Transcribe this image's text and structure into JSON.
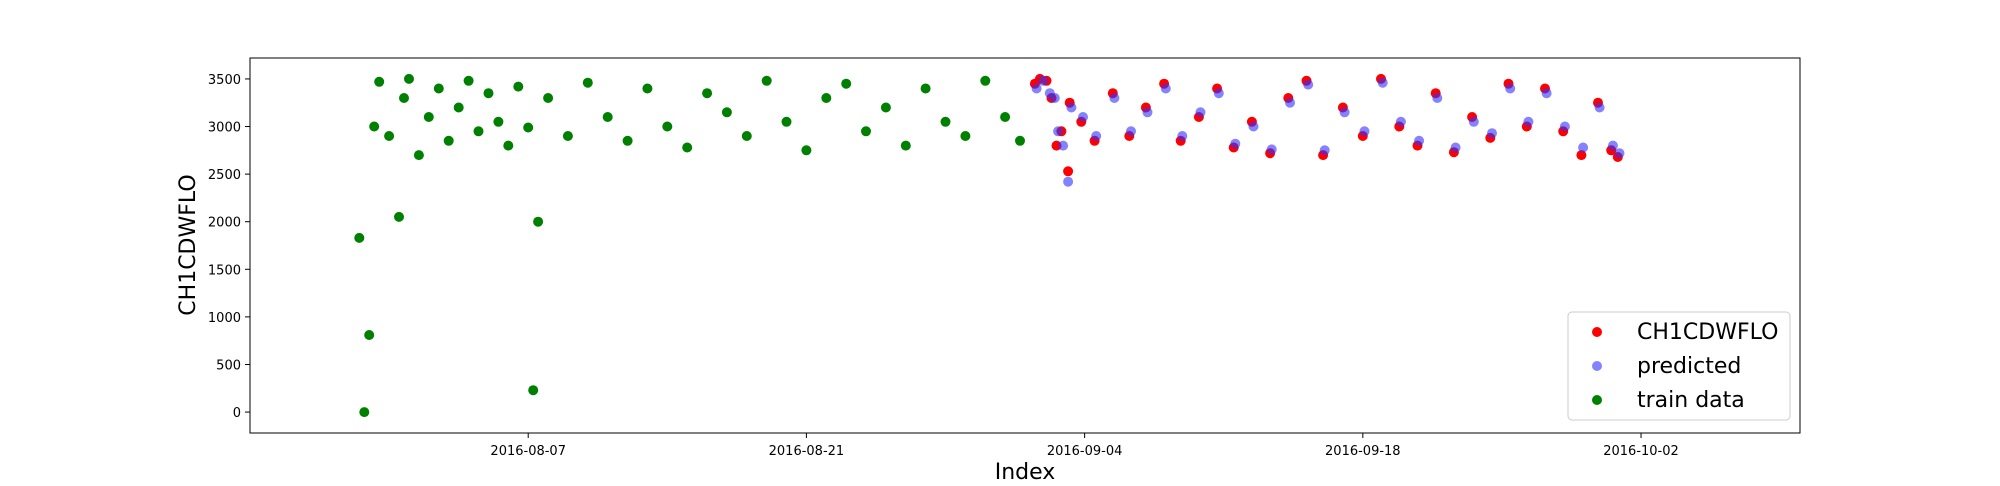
{
  "chart_data": {
    "type": "scatter",
    "title": "",
    "xlabel": "Index",
    "ylabel": "CH1CDWFLO",
    "x_axis_type": "date",
    "xlim": [
      "2016-07-24",
      "2016-10-10"
    ],
    "ylim": [
      -220,
      3720
    ],
    "x_ticks": [
      "2016-08-07",
      "2016-08-21",
      "2016-09-04",
      "2016-09-18",
      "2016-10-02"
    ],
    "y_ticks": [
      0,
      500,
      1000,
      1500,
      2000,
      2500,
      3000,
      3500
    ],
    "grid": false,
    "legend_position": "lower-right",
    "colors": {
      "CH1CDWFLO": "#ff0000",
      "predicted": "#3030ff",
      "train_data": "#008000"
    },
    "series": [
      {
        "name": "CH1CDWFLO",
        "color": "#ff0000",
        "alpha": 1.0,
        "points": [
          {
            "x": "2016-09-01T12:00",
            "y": 3450
          },
          {
            "x": "2016-09-01T18:00",
            "y": 3500
          },
          {
            "x": "2016-09-02T02:00",
            "y": 3480
          },
          {
            "x": "2016-09-02T08:00",
            "y": 3300
          },
          {
            "x": "2016-09-02T14:00",
            "y": 2800
          },
          {
            "x": "2016-09-02T20:00",
            "y": 2950
          },
          {
            "x": "2016-09-03T04:00",
            "y": 2530
          },
          {
            "x": "2016-09-03T06:00",
            "y": 3250
          },
          {
            "x": "2016-09-03T20:00",
            "y": 3050
          },
          {
            "x": "2016-09-04T12:00",
            "y": 2850
          },
          {
            "x": "2016-09-05T10:00",
            "y": 3350
          },
          {
            "x": "2016-09-06T06:00",
            "y": 2900
          },
          {
            "x": "2016-09-07T02:00",
            "y": 3200
          },
          {
            "x": "2016-09-08T00:00",
            "y": 3450
          },
          {
            "x": "2016-09-08T20:00",
            "y": 2850
          },
          {
            "x": "2016-09-09T18:00",
            "y": 3100
          },
          {
            "x": "2016-09-10T16:00",
            "y": 3400
          },
          {
            "x": "2016-09-11T12:00",
            "y": 2780
          },
          {
            "x": "2016-09-12T10:00",
            "y": 3050
          },
          {
            "x": "2016-09-13T08:00",
            "y": 2720
          },
          {
            "x": "2016-09-14T06:00",
            "y": 3300
          },
          {
            "x": "2016-09-15T04:00",
            "y": 3480
          },
          {
            "x": "2016-09-16T00:00",
            "y": 2700
          },
          {
            "x": "2016-09-17T00:00",
            "y": 3200
          },
          {
            "x": "2016-09-18T00:00",
            "y": 2900
          },
          {
            "x": "2016-09-18T22:00",
            "y": 3500
          },
          {
            "x": "2016-09-19T20:00",
            "y": 3000
          },
          {
            "x": "2016-09-20T18:00",
            "y": 2800
          },
          {
            "x": "2016-09-21T16:00",
            "y": 3350
          },
          {
            "x": "2016-09-22T14:00",
            "y": 2730
          },
          {
            "x": "2016-09-23T12:00",
            "y": 3100
          },
          {
            "x": "2016-09-24T10:00",
            "y": 2880
          },
          {
            "x": "2016-09-25T08:00",
            "y": 3450
          },
          {
            "x": "2016-09-26T06:00",
            "y": 3000
          },
          {
            "x": "2016-09-27T04:00",
            "y": 3400
          },
          {
            "x": "2016-09-28T02:00",
            "y": 2950
          },
          {
            "x": "2016-09-29T00:00",
            "y": 2700
          },
          {
            "x": "2016-09-29T20:00",
            "y": 3250
          },
          {
            "x": "2016-09-30T12:00",
            "y": 2750
          },
          {
            "x": "2016-09-30T20:00",
            "y": 2680
          }
        ]
      },
      {
        "name": "predicted",
        "color": "#3030ff",
        "alpha": 0.6,
        "points": [
          {
            "x": "2016-09-01T14:00",
            "y": 3400
          },
          {
            "x": "2016-09-01T22:00",
            "y": 3480
          },
          {
            "x": "2016-09-02T06:00",
            "y": 3350
          },
          {
            "x": "2016-09-02T12:00",
            "y": 3300
          },
          {
            "x": "2016-09-02T16:00",
            "y": 2950
          },
          {
            "x": "2016-09-02T22:00",
            "y": 2800
          },
          {
            "x": "2016-09-03T04:00",
            "y": 2420
          },
          {
            "x": "2016-09-03T08:00",
            "y": 3200
          },
          {
            "x": "2016-09-03T22:00",
            "y": 3100
          },
          {
            "x": "2016-09-04T14:00",
            "y": 2900
          },
          {
            "x": "2016-09-05T12:00",
            "y": 3300
          },
          {
            "x": "2016-09-06T08:00",
            "y": 2950
          },
          {
            "x": "2016-09-07T04:00",
            "y": 3150
          },
          {
            "x": "2016-09-08T02:00",
            "y": 3400
          },
          {
            "x": "2016-09-08T22:00",
            "y": 2900
          },
          {
            "x": "2016-09-09T20:00",
            "y": 3150
          },
          {
            "x": "2016-09-10T18:00",
            "y": 3350
          },
          {
            "x": "2016-09-11T14:00",
            "y": 2820
          },
          {
            "x": "2016-09-12T12:00",
            "y": 3000
          },
          {
            "x": "2016-09-13T10:00",
            "y": 2760
          },
          {
            "x": "2016-09-14T08:00",
            "y": 3250
          },
          {
            "x": "2016-09-15T06:00",
            "y": 3440
          },
          {
            "x": "2016-09-16T02:00",
            "y": 2750
          },
          {
            "x": "2016-09-17T02:00",
            "y": 3150
          },
          {
            "x": "2016-09-18T02:00",
            "y": 2950
          },
          {
            "x": "2016-09-19T00:00",
            "y": 3460
          },
          {
            "x": "2016-09-19T22:00",
            "y": 3050
          },
          {
            "x": "2016-09-20T20:00",
            "y": 2850
          },
          {
            "x": "2016-09-21T18:00",
            "y": 3300
          },
          {
            "x": "2016-09-22T16:00",
            "y": 2780
          },
          {
            "x": "2016-09-23T14:00",
            "y": 3050
          },
          {
            "x": "2016-09-24T12:00",
            "y": 2930
          },
          {
            "x": "2016-09-25T10:00",
            "y": 3400
          },
          {
            "x": "2016-09-26T08:00",
            "y": 3050
          },
          {
            "x": "2016-09-27T06:00",
            "y": 3350
          },
          {
            "x": "2016-09-28T04:00",
            "y": 3000
          },
          {
            "x": "2016-09-29T02:00",
            "y": 2780
          },
          {
            "x": "2016-09-29T22:00",
            "y": 3200
          },
          {
            "x": "2016-09-30T14:00",
            "y": 2800
          },
          {
            "x": "2016-09-30T22:00",
            "y": 2720
          }
        ]
      },
      {
        "name": "train data",
        "color": "#008000",
        "alpha": 1.0,
        "points": [
          {
            "x": "2016-07-29T12:00",
            "y": 1830
          },
          {
            "x": "2016-07-29T18:00",
            "y": 0
          },
          {
            "x": "2016-07-30T00:00",
            "y": 810
          },
          {
            "x": "2016-07-30T06:00",
            "y": 3000
          },
          {
            "x": "2016-07-30T12:00",
            "y": 3470
          },
          {
            "x": "2016-07-31T00:00",
            "y": 2900
          },
          {
            "x": "2016-07-31T12:00",
            "y": 2050
          },
          {
            "x": "2016-07-31T18:00",
            "y": 3300
          },
          {
            "x": "2016-08-01T00:00",
            "y": 3500
          },
          {
            "x": "2016-08-01T12:00",
            "y": 2700
          },
          {
            "x": "2016-08-02T00:00",
            "y": 3100
          },
          {
            "x": "2016-08-02T12:00",
            "y": 3400
          },
          {
            "x": "2016-08-03T00:00",
            "y": 2850
          },
          {
            "x": "2016-08-03T12:00",
            "y": 3200
          },
          {
            "x": "2016-08-04T00:00",
            "y": 3480
          },
          {
            "x": "2016-08-04T12:00",
            "y": 2950
          },
          {
            "x": "2016-08-05T00:00",
            "y": 3350
          },
          {
            "x": "2016-08-05T12:00",
            "y": 3050
          },
          {
            "x": "2016-08-06T00:00",
            "y": 2800
          },
          {
            "x": "2016-08-06T12:00",
            "y": 3420
          },
          {
            "x": "2016-08-07T00:00",
            "y": 2990
          },
          {
            "x": "2016-08-07T06:00",
            "y": 230
          },
          {
            "x": "2016-08-07T12:00",
            "y": 2000
          },
          {
            "x": "2016-08-08T00:00",
            "y": 3300
          },
          {
            "x": "2016-08-09T00:00",
            "y": 2900
          },
          {
            "x": "2016-08-10T00:00",
            "y": 3460
          },
          {
            "x": "2016-08-11T00:00",
            "y": 3100
          },
          {
            "x": "2016-08-12T00:00",
            "y": 2850
          },
          {
            "x": "2016-08-13T00:00",
            "y": 3400
          },
          {
            "x": "2016-08-14T00:00",
            "y": 3000
          },
          {
            "x": "2016-08-15T00:00",
            "y": 2780
          },
          {
            "x": "2016-08-16T00:00",
            "y": 3350
          },
          {
            "x": "2016-08-17T00:00",
            "y": 3150
          },
          {
            "x": "2016-08-18T00:00",
            "y": 2900
          },
          {
            "x": "2016-08-19T00:00",
            "y": 3480
          },
          {
            "x": "2016-08-20T00:00",
            "y": 3050
          },
          {
            "x": "2016-08-21T00:00",
            "y": 2750
          },
          {
            "x": "2016-08-22T00:00",
            "y": 3300
          },
          {
            "x": "2016-08-23T00:00",
            "y": 3450
          },
          {
            "x": "2016-08-24T00:00",
            "y": 2950
          },
          {
            "x": "2016-08-25T00:00",
            "y": 3200
          },
          {
            "x": "2016-08-26T00:00",
            "y": 2800
          },
          {
            "x": "2016-08-27T00:00",
            "y": 3400
          },
          {
            "x": "2016-08-28T00:00",
            "y": 3050
          },
          {
            "x": "2016-08-29T00:00",
            "y": 2900
          },
          {
            "x": "2016-08-30T00:00",
            "y": 3480
          },
          {
            "x": "2016-08-31T00:00",
            "y": 3100
          },
          {
            "x": "2016-08-31T18:00",
            "y": 2850
          }
        ]
      }
    ]
  }
}
